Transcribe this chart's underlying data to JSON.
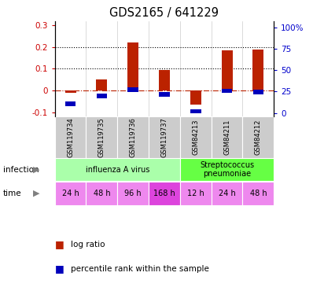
{
  "title": "GDS2165 / 641229",
  "samples": [
    "GSM119734",
    "GSM119735",
    "GSM119736",
    "GSM119737",
    "GSM84213",
    "GSM84211",
    "GSM84212"
  ],
  "log_ratio": [
    -0.01,
    0.05,
    0.22,
    0.095,
    -0.065,
    0.185,
    0.19
  ],
  "percentile_rank": [
    10.5,
    19.7,
    27.0,
    21.5,
    2.2,
    25.8,
    24.5
  ],
  "ylim_left": [
    -0.12,
    0.32
  ],
  "ylim_right": [
    -4,
    107
  ],
  "yticks_left": [
    -0.1,
    0.0,
    0.1,
    0.2,
    0.3
  ],
  "ytick_labels_left": [
    "-0.1",
    "0",
    "0.1",
    "0.2",
    "0.3"
  ],
  "yticks_right": [
    0,
    25,
    50,
    75,
    100
  ],
  "ytick_labels_right": [
    "0",
    "25",
    "50",
    "75",
    "100%"
  ],
  "hlines": [
    0.1,
    0.2
  ],
  "bar_color": "#bb2200",
  "square_color": "#0000bb",
  "infection_groups": [
    {
      "label": "influenza A virus",
      "start": 0,
      "end": 4,
      "color": "#aaffaa"
    },
    {
      "label": "Streptococcus\npneumoniae",
      "start": 4,
      "end": 7,
      "color": "#66ff44"
    }
  ],
  "time_labels": [
    "24 h",
    "48 h",
    "96 h",
    "168 h",
    "12 h",
    "24 h",
    "48 h"
  ],
  "time_colors": [
    "#ee88ee",
    "#ee88ee",
    "#ee88ee",
    "#dd44dd",
    "#ee88ee",
    "#ee88ee",
    "#ee88ee"
  ],
  "infection_label": "infection",
  "time_label": "time",
  "legend_items": [
    "log ratio",
    "percentile rank within the sample"
  ],
  "legend_colors": [
    "#bb2200",
    "#0000bb"
  ]
}
